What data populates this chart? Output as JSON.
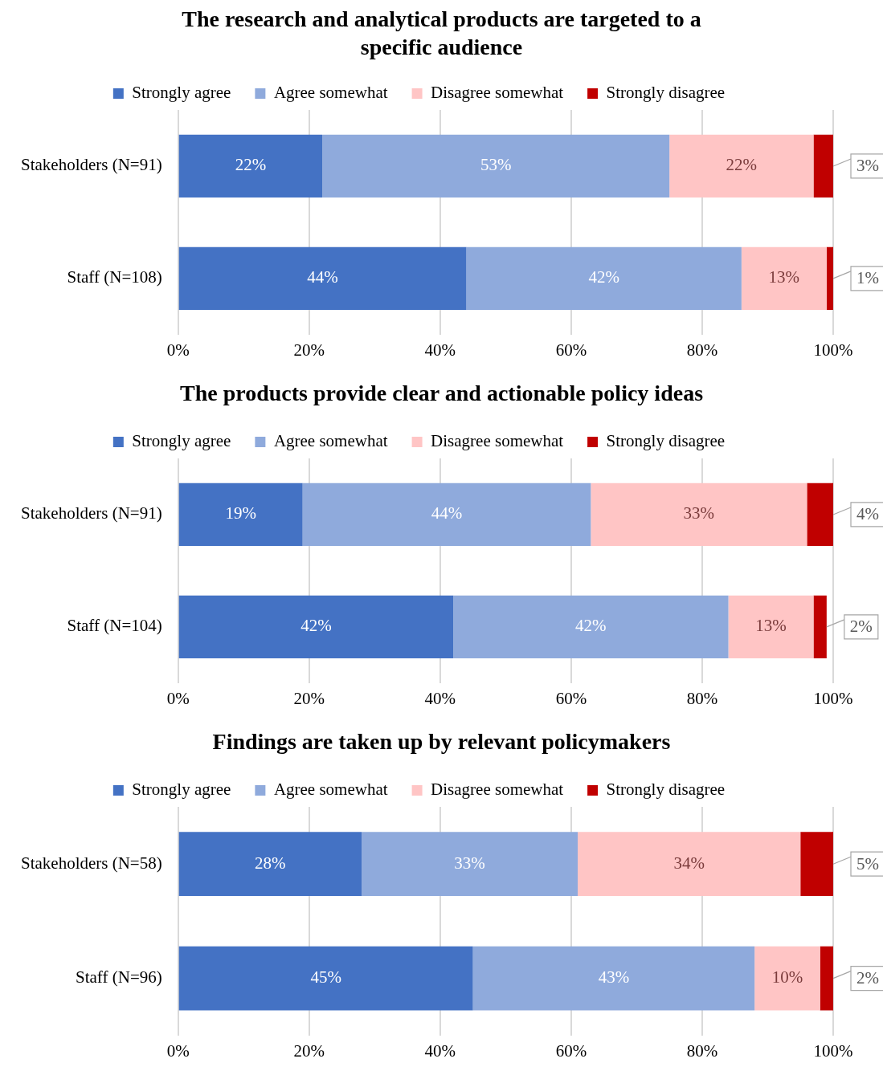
{
  "chart_data": [
    {
      "type": "bar",
      "orientation": "horizontal",
      "stacked": true,
      "title": "The research and analytical products are targeted to a specific audience",
      "categories": [
        "Stakeholders (N=91)",
        "Staff (N=108)"
      ],
      "series": [
        {
          "name": "Strongly agree",
          "color": "#4472c4",
          "values": [
            22,
            44
          ],
          "value_labels": [
            "22%",
            "44%"
          ]
        },
        {
          "name": "Agree somewhat",
          "color": "#8faadc",
          "values": [
            53,
            42
          ],
          "value_labels": [
            "53%",
            "42%"
          ]
        },
        {
          "name": "Disagree somewhat",
          "color": "#ffc5c5",
          "values": [
            22,
            13
          ],
          "value_labels": [
            "22%",
            "13%"
          ]
        },
        {
          "name": "Strongly disagree",
          "color": "#c00000",
          "values": [
            3,
            1
          ],
          "value_labels": [
            "3%",
            "1%"
          ]
        }
      ],
      "xlim": [
        0,
        100
      ],
      "xticks": [
        {
          "value": 0,
          "label": "0%"
        },
        {
          "value": 20,
          "label": "20%"
        },
        {
          "value": 40,
          "label": "40%"
        },
        {
          "value": 60,
          "label": "60%"
        },
        {
          "value": 80,
          "label": "80%"
        },
        {
          "value": 100,
          "label": "100%"
        }
      ],
      "grid": "x",
      "legend": "top"
    },
    {
      "type": "bar",
      "orientation": "horizontal",
      "stacked": true,
      "title": "The products provide clear and actionable policy ideas",
      "categories": [
        "Stakeholders (N=91)",
        "Staff (N=104)"
      ],
      "series": [
        {
          "name": "Strongly agree",
          "color": "#4472c4",
          "values": [
            19,
            42
          ],
          "value_labels": [
            "19%",
            "42%"
          ]
        },
        {
          "name": "Agree somewhat",
          "color": "#8faadc",
          "values": [
            44,
            42
          ],
          "value_labels": [
            "44%",
            "42%"
          ]
        },
        {
          "name": "Disagree somewhat",
          "color": "#ffc5c5",
          "values": [
            33,
            13
          ],
          "value_labels": [
            "33%",
            "13%"
          ]
        },
        {
          "name": "Strongly disagree",
          "color": "#c00000",
          "values": [
            4,
            2
          ],
          "value_labels": [
            "4%",
            "2%"
          ]
        }
      ],
      "xlim": [
        0,
        100
      ],
      "xticks": [
        {
          "value": 0,
          "label": "0%"
        },
        {
          "value": 20,
          "label": "20%"
        },
        {
          "value": 40,
          "label": "40%"
        },
        {
          "value": 60,
          "label": "60%"
        },
        {
          "value": 80,
          "label": "80%"
        },
        {
          "value": 100,
          "label": "100%"
        }
      ],
      "grid": "x",
      "legend": "top"
    },
    {
      "type": "bar",
      "orientation": "horizontal",
      "stacked": true,
      "title": "Findings are taken up by relevant policymakers",
      "categories": [
        "Stakeholders (N=58)",
        "Staff (N=96)"
      ],
      "series": [
        {
          "name": "Strongly agree",
          "color": "#4472c4",
          "values": [
            28,
            45
          ],
          "value_labels": [
            "28%",
            "45%"
          ]
        },
        {
          "name": "Agree somewhat",
          "color": "#8faadc",
          "values": [
            33,
            43
          ],
          "value_labels": [
            "33%",
            "43%"
          ]
        },
        {
          "name": "Disagree somewhat",
          "color": "#ffc5c5",
          "values": [
            34,
            10
          ],
          "value_labels": [
            "34%",
            "10%"
          ]
        },
        {
          "name": "Strongly disagree",
          "color": "#c00000",
          "values": [
            5,
            2
          ],
          "value_labels": [
            "5%",
            "2%"
          ]
        }
      ],
      "xlim": [
        0,
        100
      ],
      "xticks": [
        {
          "value": 0,
          "label": "0%"
        },
        {
          "value": 20,
          "label": "20%"
        },
        {
          "value": 40,
          "label": "40%"
        },
        {
          "value": 60,
          "label": "60%"
        },
        {
          "value": 80,
          "label": "80%"
        },
        {
          "value": 100,
          "label": "100%"
        }
      ],
      "grid": "x",
      "legend": "top"
    }
  ]
}
